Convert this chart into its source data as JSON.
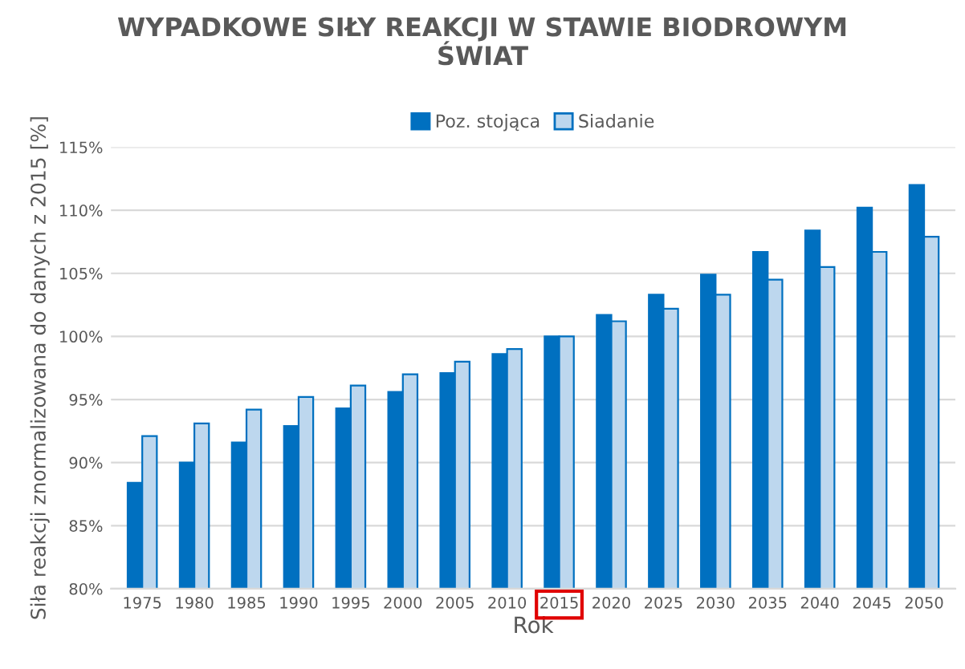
{
  "chart_data": {
    "type": "bar",
    "title": "WYPADKOWE SIŁY REAKCJI W STAWIE BIODROWYM\nŚWIAT",
    "xlabel": "Rok",
    "ylabel": "Siła reakcji znormalizowana do danych z 2015 [%]",
    "categories": [
      "1975",
      "1980",
      "1985",
      "1990",
      "1995",
      "2000",
      "2005",
      "2010",
      "2015",
      "2020",
      "2025",
      "2030",
      "2035",
      "2040",
      "2045",
      "2050"
    ],
    "series": [
      {
        "name": "Poz. stojąca",
        "color": "#0070c0",
        "values": [
          88.4,
          90.0,
          91.6,
          92.9,
          94.3,
          95.6,
          97.1,
          98.6,
          100,
          101.7,
          103.3,
          104.9,
          106.7,
          108.4,
          110.2,
          112.0
        ]
      },
      {
        "name": "Siadanie",
        "color": "#bdd7ee",
        "values": [
          92.1,
          93.1,
          94.2,
          95.2,
          96.1,
          97.0,
          98.0,
          99.0,
          100,
          101.2,
          102.2,
          103.3,
          104.5,
          105.5,
          106.7,
          107.9
        ]
      }
    ],
    "ylim": [
      80,
      115
    ],
    "yticks": [
      {
        "value": 80,
        "label": "80%"
      },
      {
        "value": 85,
        "label": "85%"
      },
      {
        "value": 90,
        "label": "90%"
      },
      {
        "value": 95,
        "label": "95%"
      },
      {
        "value": 100,
        "label": "100%"
      },
      {
        "value": 105,
        "label": "105%"
      },
      {
        "value": 110,
        "label": "110%"
      },
      {
        "value": 115,
        "label": "115%"
      }
    ],
    "grid": "y",
    "legend": "top"
  }
}
